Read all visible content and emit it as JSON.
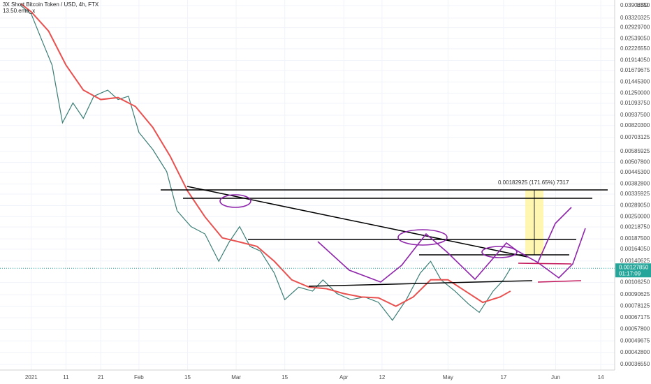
{
  "chart_data": {
    "type": "line",
    "log_scale": true,
    "grid": true,
    "currency_label": "USD",
    "last_price": {
      "value": 0.0012785,
      "label": "0.00127850",
      "countdown": "01:17:09",
      "color": "#26a69a"
    },
    "measure_label": "0.00182925 (171.65%) 7317",
    "xlim": [
      -9,
      168
    ],
    "xticks": [
      {
        "value": 0,
        "label": "2021"
      },
      {
        "value": 10,
        "label": "11"
      },
      {
        "value": 20,
        "label": "21"
      },
      {
        "value": 31,
        "label": "Feb"
      },
      {
        "value": 45,
        "label": "15"
      },
      {
        "value": 59,
        "label": "Mar"
      },
      {
        "value": 73,
        "label": "15"
      },
      {
        "value": 90,
        "label": "Apr"
      },
      {
        "value": 101,
        "label": "12"
      },
      {
        "value": 120,
        "label": "May"
      },
      {
        "value": 136,
        "label": "17"
      },
      {
        "value": 151,
        "label": "Jun"
      },
      {
        "value": 164,
        "label": "14"
      }
    ],
    "ylim": [
      0.00034,
      0.042
    ],
    "yticks": [
      {
        "value": 0.0390625,
        "label": "0.03906250"
      },
      {
        "value": 0.03320325,
        "label": "0.03320325"
      },
      {
        "value": 0.029297,
        "label": "0.02929700"
      },
      {
        "value": 0.0253905,
        "label": "0.02539050"
      },
      {
        "value": 0.0222655,
        "label": "0.02226550"
      },
      {
        "value": 0.0191405,
        "label": "0.01914050"
      },
      {
        "value": 0.01679675,
        "label": "0.01679675"
      },
      {
        "value": 0.014453,
        "label": "0.01445300"
      },
      {
        "value": 0.0125,
        "label": "0.01250000"
      },
      {
        "value": 0.0109375,
        "label": "0.01093750"
      },
      {
        "value": 0.009375,
        "label": "0.00937500"
      },
      {
        "value": 0.008203,
        "label": "0.00820300"
      },
      {
        "value": 0.00703125,
        "label": "0.00703125"
      },
      {
        "value": 0.00585925,
        "label": "0.00585925"
      },
      {
        "value": 0.005078,
        "label": "0.00507800"
      },
      {
        "value": 0.004453,
        "label": "0.00445300"
      },
      {
        "value": 0.003828,
        "label": "0.00382800"
      },
      {
        "value": 0.00335925,
        "label": "0.00335925"
      },
      {
        "value": 0.0028905,
        "label": "0.00289050"
      },
      {
        "value": 0.0025,
        "label": "0.00250000"
      },
      {
        "value": 0.0021875,
        "label": "0.00218750"
      },
      {
        "value": 0.001875,
        "label": "0.00187500"
      },
      {
        "value": 0.0016405,
        "label": "0.00164050"
      },
      {
        "value": 0.00140625,
        "label": "0.00140625"
      },
      {
        "value": 0.0010625,
        "label": "0.00106250"
      },
      {
        "value": 0.00090625,
        "label": "0.00090625"
      },
      {
        "value": 0.00078125,
        "label": "0.00078125"
      },
      {
        "value": 0.00067175,
        "label": "0.00067175"
      },
      {
        "value": 0.000578,
        "label": "0.00057800"
      },
      {
        "value": 0.00049675,
        "label": "0.00049675"
      },
      {
        "value": 0.000428,
        "label": "0.00042800"
      },
      {
        "value": 0.0003655,
        "label": "0.00036550"
      }
    ],
    "series": [
      {
        "name": "3X Short Bitcoin Token / USD, 4h, FTX",
        "color": "#3a7d74",
        "x": [
          -3,
          0,
          3,
          6,
          9,
          12,
          15,
          18,
          22,
          25,
          28,
          31,
          35,
          39,
          42,
          46,
          50,
          54,
          57,
          60,
          63,
          66,
          70,
          73,
          77,
          81,
          84,
          88,
          92,
          96,
          100,
          104,
          108,
          112,
          115,
          118,
          122,
          126,
          129,
          133,
          136,
          138
        ],
        "values": [
          0.039,
          0.035,
          0.025,
          0.018,
          0.0085,
          0.011,
          0.009,
          0.012,
          0.013,
          0.0115,
          0.012,
          0.0075,
          0.006,
          0.0045,
          0.0027,
          0.0022,
          0.002,
          0.0014,
          0.0018,
          0.0022,
          0.0017,
          0.0016,
          0.0012,
          0.00085,
          0.001,
          0.00095,
          0.0011,
          0.00092,
          0.00085,
          0.00088,
          0.00082,
          0.00065,
          0.00085,
          0.0012,
          0.0014,
          0.0011,
          0.00095,
          0.0008,
          0.00072,
          0.00095,
          0.0011,
          0.0012785
        ]
      },
      {
        "name": "13.50.ema_x",
        "color": "#e8514f",
        "x": [
          -3,
          0,
          5,
          10,
          15,
          20,
          25,
          30,
          35,
          40,
          45,
          50,
          55,
          60,
          65,
          70,
          75,
          80,
          85,
          90,
          95,
          100,
          105,
          110,
          115,
          120,
          125,
          130,
          135,
          138
        ],
        "values": [
          0.04,
          0.036,
          0.028,
          0.018,
          0.013,
          0.0115,
          0.0118,
          0.0105,
          0.008,
          0.0055,
          0.0035,
          0.0025,
          0.0019,
          0.0018,
          0.0017,
          0.0014,
          0.0011,
          0.001,
          0.00098,
          0.00092,
          0.00088,
          0.00087,
          0.00078,
          0.00088,
          0.0011,
          0.0011,
          0.00095,
          0.00082,
          0.00088,
          0.00095
        ]
      }
    ]
  }
}
